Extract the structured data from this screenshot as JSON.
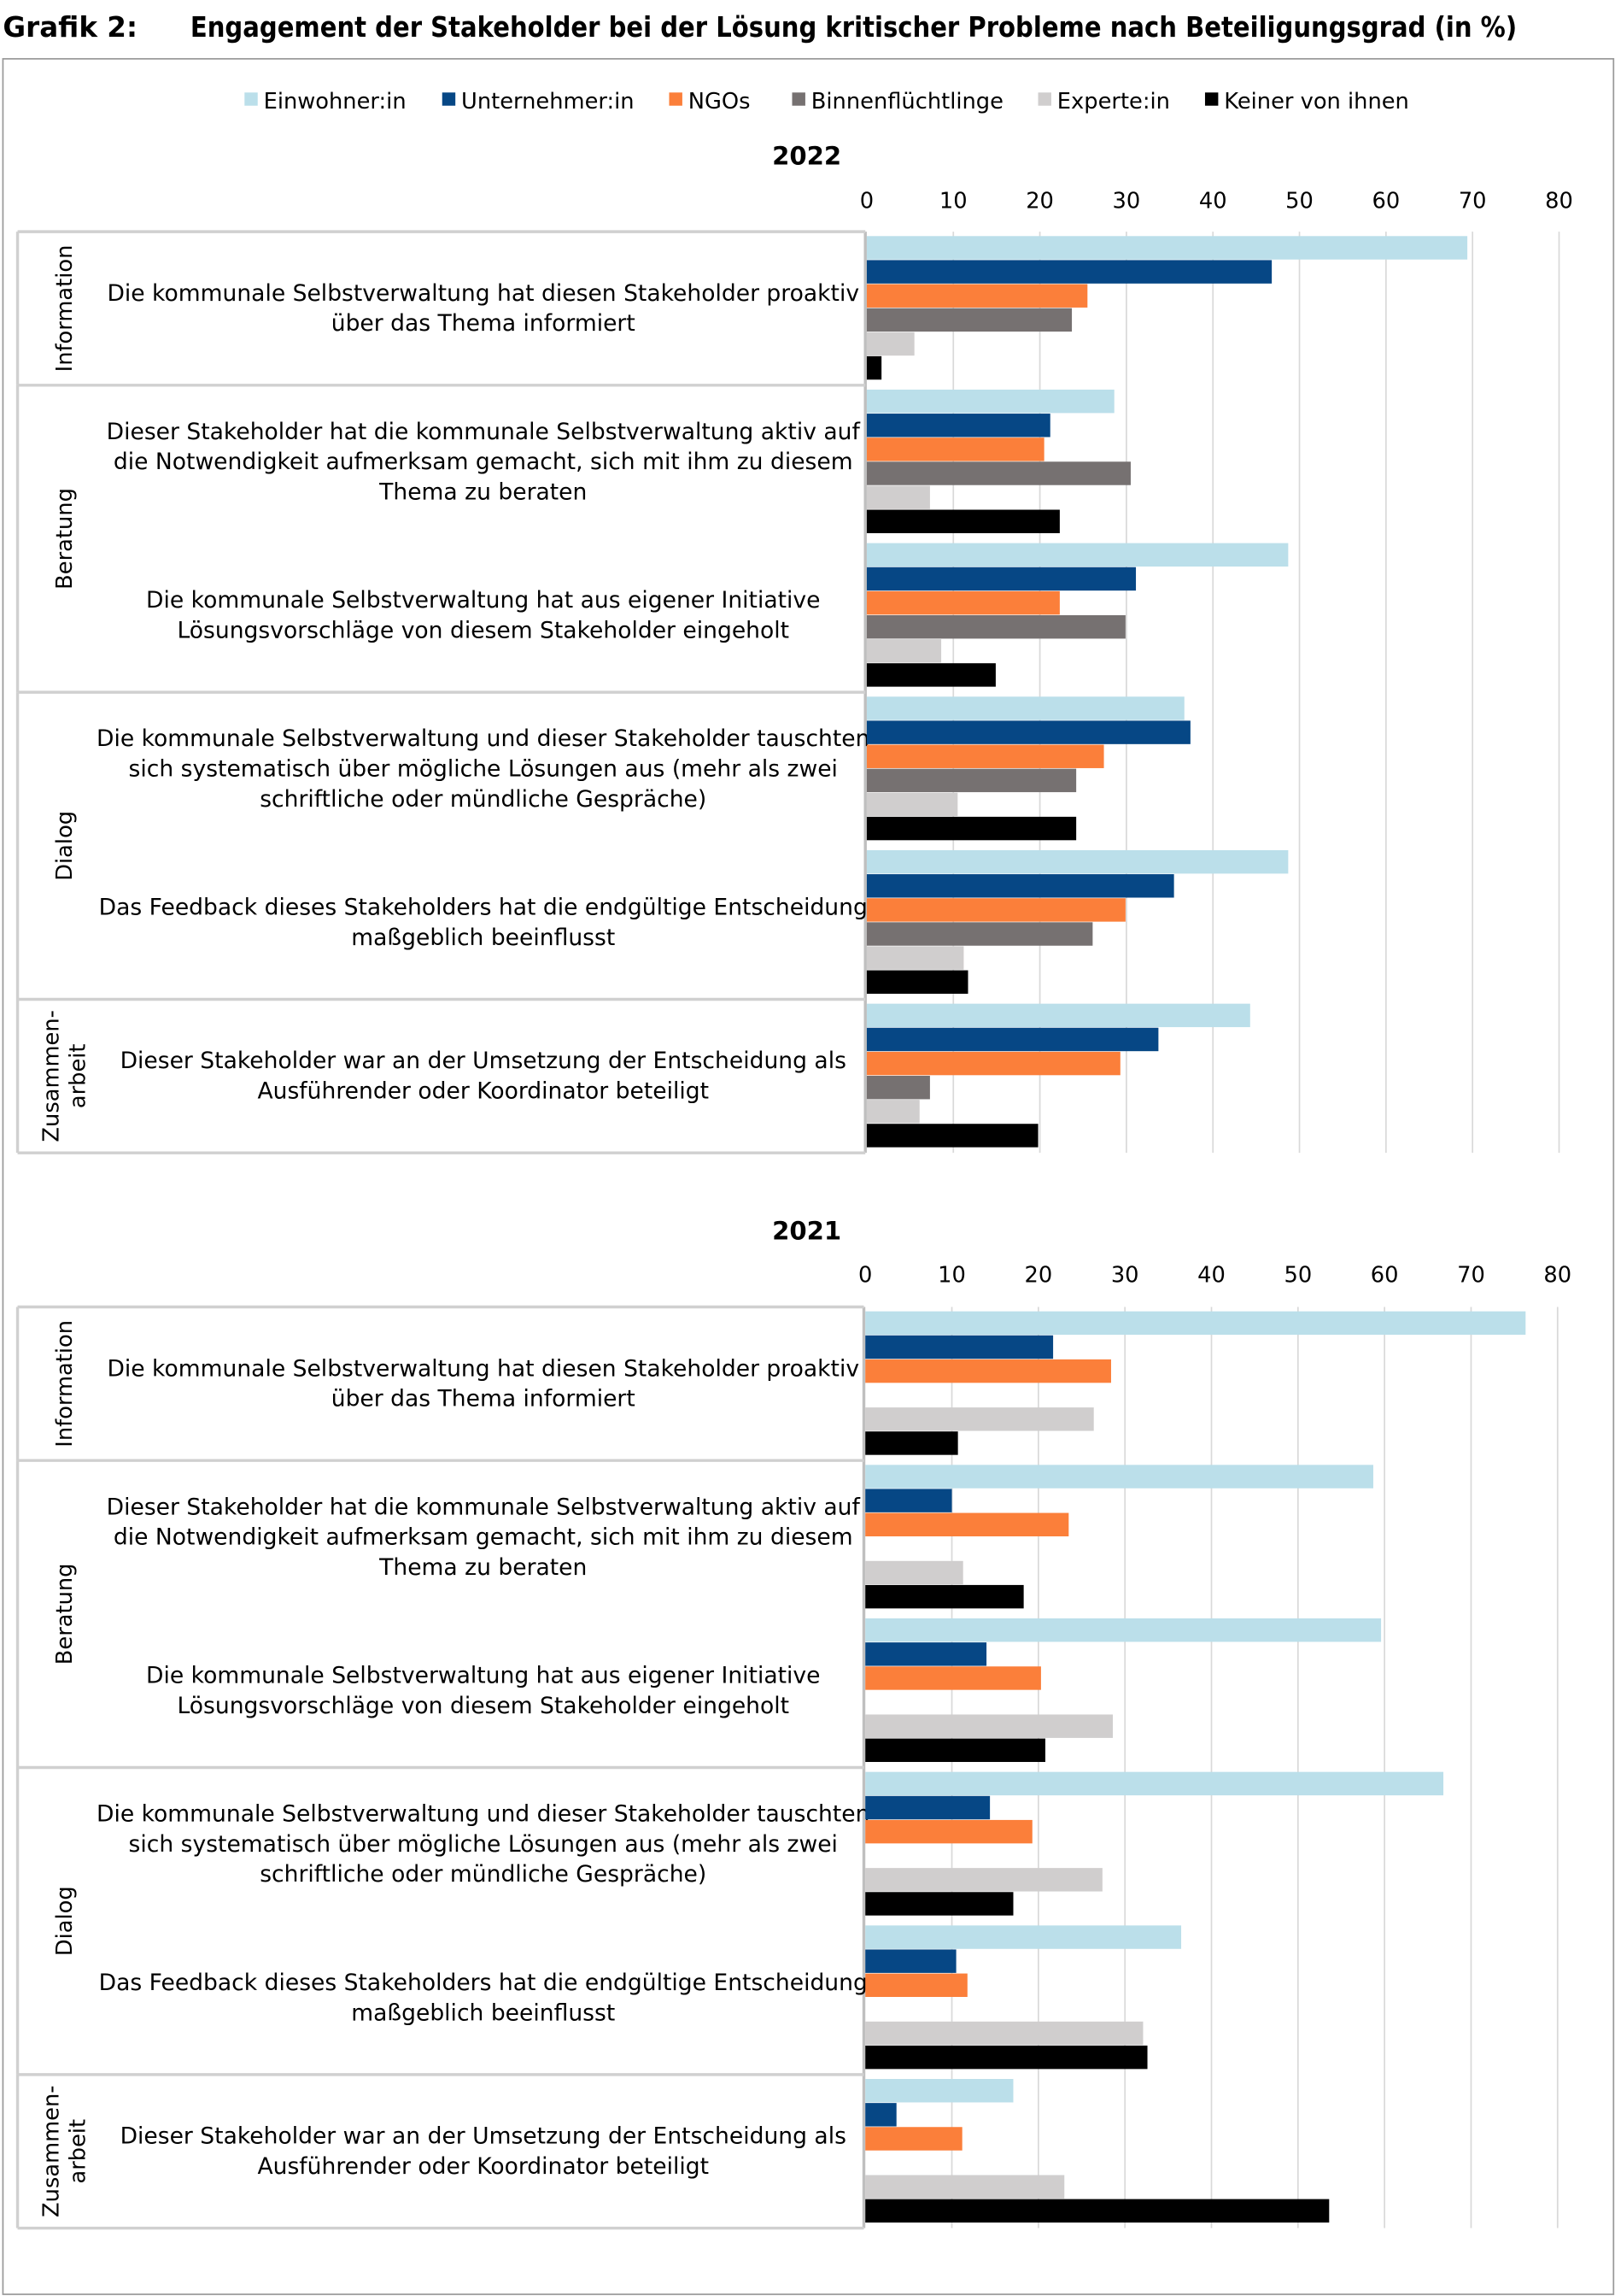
{
  "figure_label": "Grafik 2:",
  "title": "Engagement der Stakeholder bei der Lösung kritischer Probleme nach Beteiligungsgrad (in %)",
  "legend": [
    {
      "name": "Einwohner:in",
      "color": "#bbdfea"
    },
    {
      "name": "Unternehmer:in",
      "color": "#064785"
    },
    {
      "name": "NGOs",
      "color": "#fb7f3a"
    },
    {
      "name": "Binnenflüchtlinge",
      "color": "#767171"
    },
    {
      "name": "Experte:in",
      "color": "#d0cece"
    },
    {
      "name": "Keiner von ihnen",
      "color": "#000000"
    }
  ],
  "chart_data": [
    {
      "type": "bar",
      "orientation": "horizontal",
      "title": "2022",
      "xlim": [
        0,
        80
      ],
      "ticks": [
        "0",
        "10",
        "20",
        "30",
        "40",
        "50",
        "60",
        "70",
        "80"
      ],
      "grid": true,
      "legend_position": "top",
      "groups": [
        {
          "label": [
            "Information"
          ],
          "items": [
            0
          ]
        },
        {
          "label": [
            "Beratung"
          ],
          "items": [
            1,
            2
          ]
        },
        {
          "label": [
            "Dialog"
          ],
          "items": [
            3,
            4
          ]
        },
        {
          "label": [
            "Zusammen-",
            "arbeit"
          ],
          "items": [
            5
          ]
        }
      ],
      "categories": [
        [
          "Die kommunale Selbstverwaltung hat diesen Stakeholder proaktiv",
          "über das Thema informiert"
        ],
        [
          "Dieser Stakeholder hat die kommunale Selbstverwaltung aktiv auf",
          "die Notwendigkeit aufmerksam gemacht, sich mit ihm zu diesem",
          "Thema zu beraten"
        ],
        [
          "Die kommunale Selbstverwaltung hat aus eigener Initiative",
          "Lösungsvorschläge von diesem Stakeholder eingeholt"
        ],
        [
          "Die kommunale Selbstverwaltung und dieser Stakeholder tauschten",
          "sich systematisch über mögliche Lösungen aus (mehr als zwei",
          "schriftliche oder mündliche Gespräche)"
        ],
        [
          "Das Feedback dieses Stakeholders hat die endgültige Entscheidung",
          "maßgeblich beeinflusst"
        ],
        [
          "Dieser Stakeholder war an der Umsetzung der Entscheidung als",
          "Ausführender oder Koordinator beteiligt"
        ]
      ],
      "series": [
        {
          "name": "Einwohner:in",
          "values": [
            69.4,
            28.6,
            48.7,
            36.7,
            48.7,
            44.3
          ]
        },
        {
          "name": "Unternehmer:in",
          "values": [
            46.8,
            21.2,
            31.1,
            37.4,
            35.5,
            33.7
          ]
        },
        {
          "name": "NGOs",
          "values": [
            25.5,
            20.5,
            22.3,
            27.4,
            29.9,
            29.3
          ]
        },
        {
          "name": "Binnenflüchtlinge",
          "values": [
            23.7,
            30.5,
            29.9,
            24.2,
            26.1,
            7.3
          ]
        },
        {
          "name": "Experte:in",
          "values": [
            5.5,
            7.3,
            8.6,
            10.5,
            11.2,
            6.1
          ]
        },
        {
          "name": "Keiner von ihnen",
          "values": [
            1.7,
            22.3,
            14.9,
            24.2,
            11.7,
            19.8
          ]
        }
      ]
    },
    {
      "type": "bar",
      "orientation": "horizontal",
      "title": "2021",
      "xlim": [
        0,
        80
      ],
      "ticks": [
        "0",
        "10",
        "20",
        "30",
        "40",
        "50",
        "60",
        "70",
        "80"
      ],
      "grid": true,
      "legend_position": "top",
      "groups": [
        {
          "label": [
            "Information"
          ],
          "items": [
            0
          ]
        },
        {
          "label": [
            "Beratung"
          ],
          "items": [
            1,
            2
          ]
        },
        {
          "label": [
            "Dialog"
          ],
          "items": [
            3,
            4
          ]
        },
        {
          "label": [
            "Zusammen-",
            "arbeit"
          ],
          "items": [
            5
          ]
        }
      ],
      "categories": [
        [
          "Die kommunale Selbstverwaltung hat diesen Stakeholder proaktiv",
          "über das Thema informiert"
        ],
        [
          "Dieser Stakeholder hat die kommunale Selbstverwaltung aktiv auf",
          "die Notwendigkeit aufmerksam gemacht, sich mit ihm zu diesem",
          "Thema zu beraten"
        ],
        [
          "Die kommunale Selbstverwaltung hat aus eigener Initiative",
          "Lösungsvorschläge von diesem Stakeholder eingeholt"
        ],
        [
          "Die kommunale Selbstverwaltung und dieser Stakeholder tauschten",
          "sich systematisch über mögliche Lösungen aus (mehr als zwei",
          "schriftliche oder mündliche Gespräche)"
        ],
        [
          "Das Feedback dieses Stakeholders hat die endgültige Entscheidung",
          "maßgeblich beeinflusst"
        ],
        [
          "Dieser Stakeholder war an der Umsetzung der Entscheidung als",
          "Ausführender oder Koordinator beteiligt"
        ]
      ],
      "series": [
        {
          "name": "Einwohner:in",
          "values": [
            76.3,
            58.7,
            59.6,
            66.8,
            36.5,
            17.1
          ]
        },
        {
          "name": "Unternehmer:in",
          "values": [
            21.7,
            10.0,
            14.0,
            14.4,
            10.5,
            3.6
          ]
        },
        {
          "name": "NGOs",
          "values": [
            28.4,
            23.5,
            20.3,
            19.3,
            11.8,
            11.2
          ]
        },
        {
          "name": "Binnenflüchtlinge",
          "values": [
            0,
            0,
            0,
            0,
            0,
            0
          ]
        },
        {
          "name": "Experte:in",
          "values": [
            26.4,
            11.3,
            28.6,
            27.4,
            32.1,
            23.0
          ]
        },
        {
          "name": "Keiner von ihnen",
          "values": [
            10.7,
            18.3,
            20.8,
            17.1,
            32.6,
            53.6
          ]
        }
      ]
    }
  ]
}
